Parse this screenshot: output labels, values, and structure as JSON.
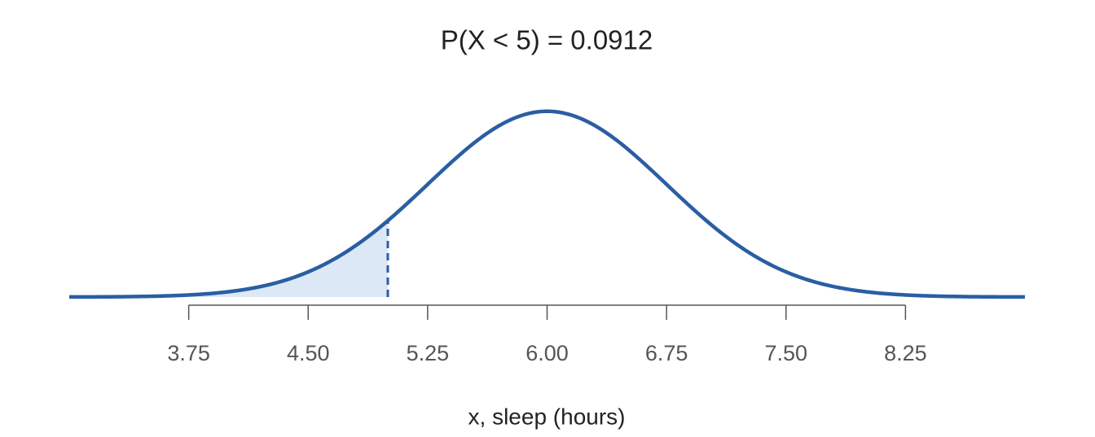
{
  "chart_data": {
    "type": "normal",
    "title": "P(X < 5) = 0.0912",
    "xlabel": "x, sleep (hours)",
    "mean": 6,
    "sd": 0.75,
    "shade_upper": 5,
    "color": "#2a5ea4",
    "shade_color": "#dce8f6",
    "xlim": [
      3,
      9
    ],
    "ylim": [
      0,
      0.55
    ],
    "xticks": [
      3.75,
      {
        "value": 4.5,
        "label": "4.50"
      },
      5.25,
      {
        "value": 6,
        "label": "6.00"
      },
      6.75,
      {
        "value": 7.5,
        "label": "7.50"
      },
      8.25
    ]
  }
}
